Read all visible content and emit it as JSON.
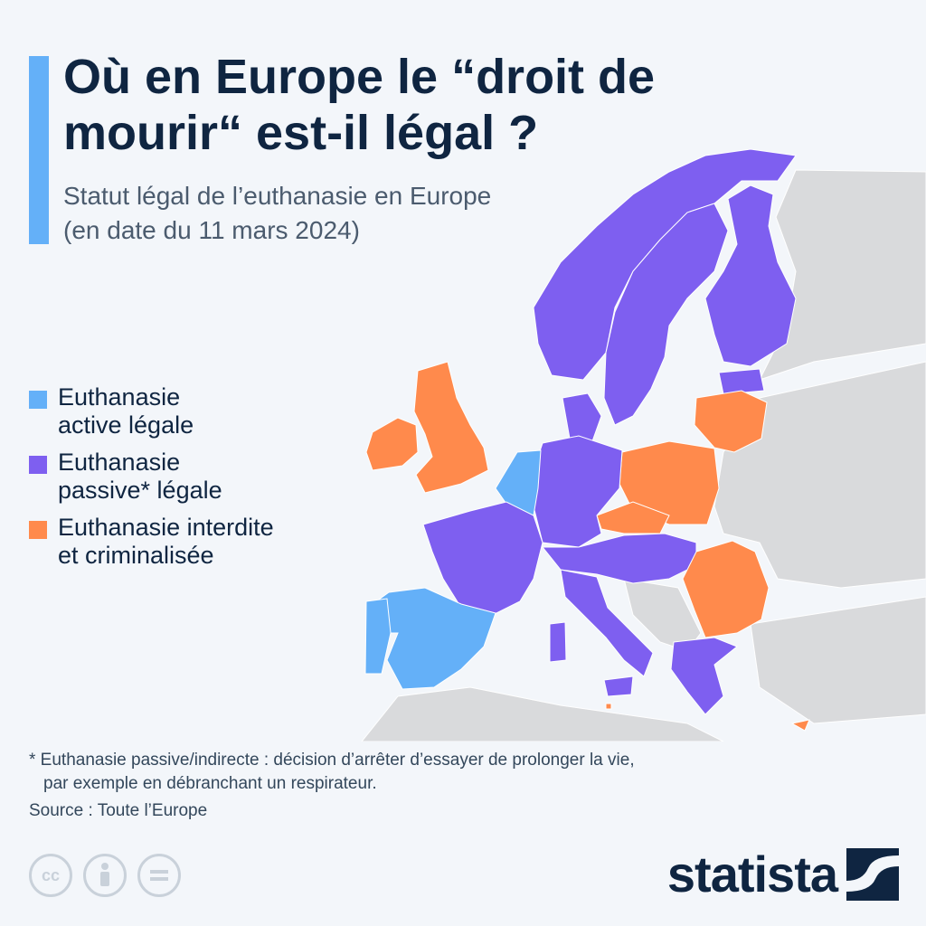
{
  "colors": {
    "active_legal": "#64b0f8",
    "passive_legal": "#7e5ff0",
    "forbidden": "#ff8a4c",
    "non_eu": "#d9dadc",
    "sea": "#f3f6fa",
    "accent": "#64b0f8",
    "title": "#0f2541"
  },
  "title": {
    "line1": "Où en Europe le “droit de",
    "line2": "mourir“ est-il légal ?"
  },
  "subtitle": {
    "line1": "Statut légal de l’euthanasie en Europe",
    "line2": "(en date du 11 mars 2024)"
  },
  "legend": [
    {
      "line1": "Euthanasie",
      "line2": "active légale",
      "color": "#64b0f8"
    },
    {
      "line1": "Euthanasie",
      "line2": "passive* légale",
      "color": "#7e5ff0"
    },
    {
      "line1": "Euthanasie interdite",
      "line2": "et criminalisée",
      "color": "#ff8a4c"
    }
  ],
  "map_data": {
    "active_legal": [
      "Spain",
      "Belgium",
      "Netherlands",
      "Luxembourg"
    ],
    "passive_legal": [
      "France",
      "Germany",
      "Italy",
      "Austria",
      "Slovenia",
      "Croatia",
      "Hungary",
      "Slovakia",
      "Denmark",
      "Sweden",
      "Finland",
      "Estonia",
      "Greece",
      "Portugal",
      "Norway",
      "Switzerland"
    ],
    "forbidden": [
      "Ireland",
      "United Kingdom",
      "Poland",
      "Czech Republic",
      "Lithuania",
      "Latvia",
      "Romania",
      "Bulgaria",
      "Malta",
      "Cyprus"
    ]
  },
  "footnote": {
    "line1": "* Euthanasie passive/indirecte : décision d’arrêter d’essayer de prolonger la vie,",
    "line2": "par exemple en débranchant un respirateur."
  },
  "source": "Source : Toute l’Europe",
  "license_icons": [
    "cc-icon",
    "attribution-icon",
    "no-derivatives-icon"
  ],
  "brand": "statista"
}
